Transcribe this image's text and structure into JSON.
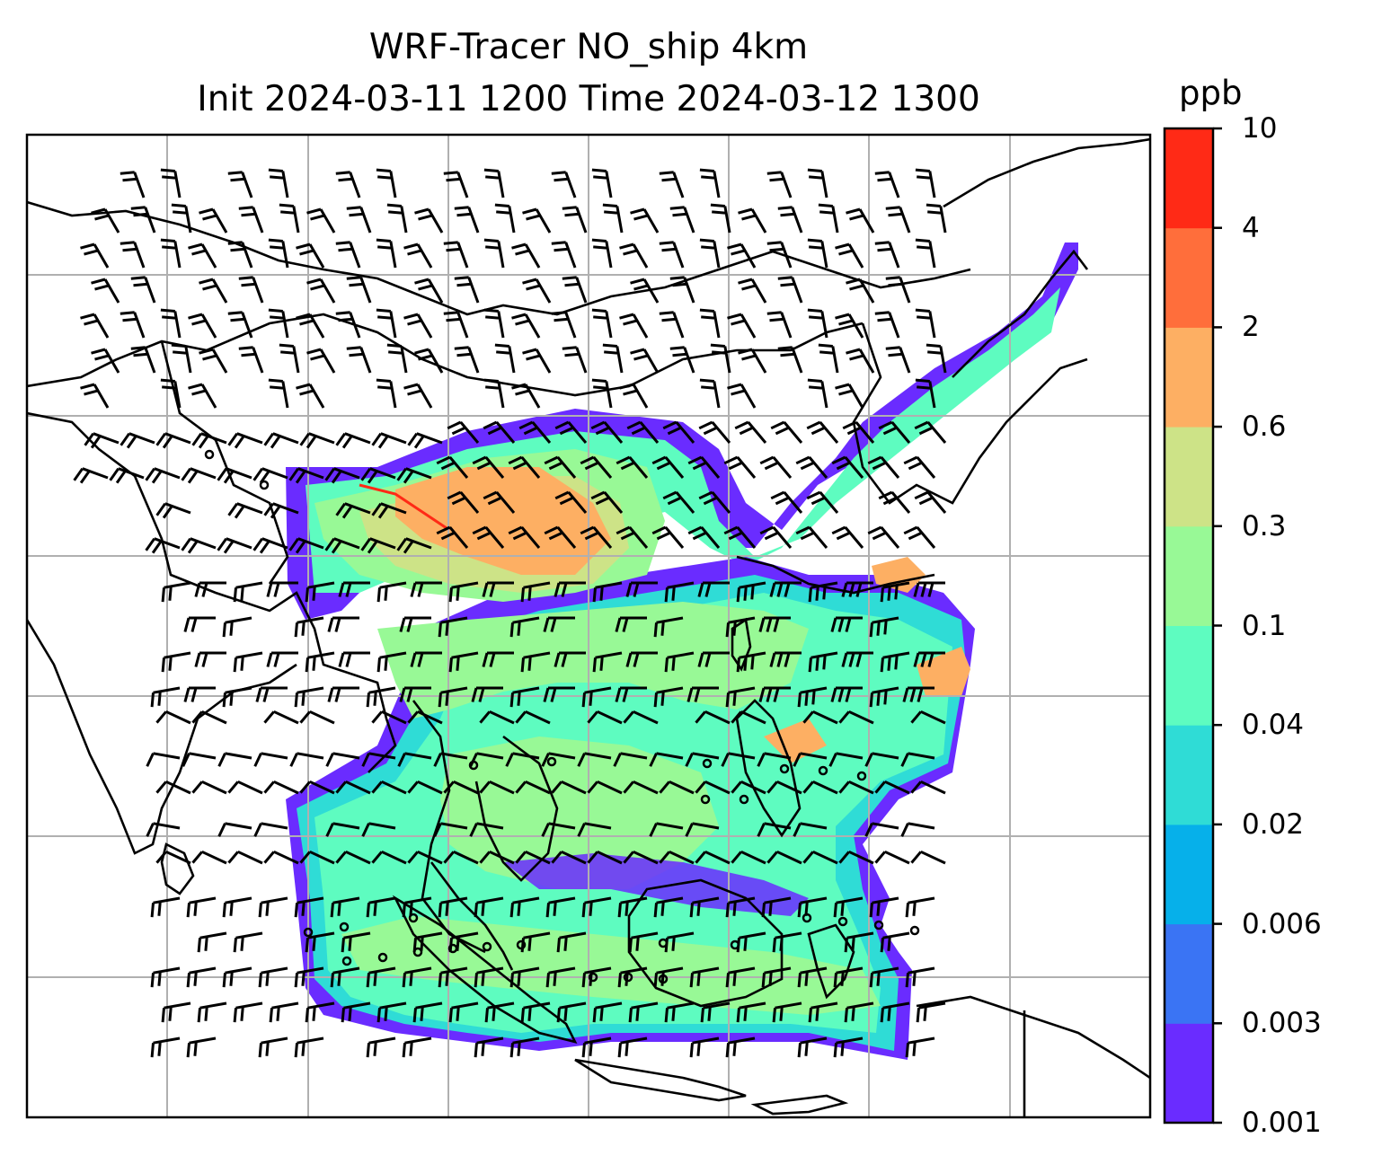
{
  "title": {
    "line1": "WRF-Tracer NO_ship 4km",
    "line2": "Init 2024-03-11 1200 Time 2024-03-12 1300"
  },
  "colorbar": {
    "unit": "ppb",
    "tick_labels": [
      "0.001",
      "0.003",
      "0.006",
      "0.02",
      "0.04",
      "0.1",
      "0.3",
      "0.6",
      "2",
      "4",
      "10"
    ],
    "colors": [
      "#6a2cff",
      "#3a74f4",
      "#06b0ea",
      "#2fdcd6",
      "#5efcc0",
      "#98f996",
      "#cde387",
      "#fdaf63",
      "#ff6e3b",
      "#ff2a16"
    ]
  },
  "map": {
    "lines_color": "#000000",
    "grid_color": "#b0b0b0"
  }
}
